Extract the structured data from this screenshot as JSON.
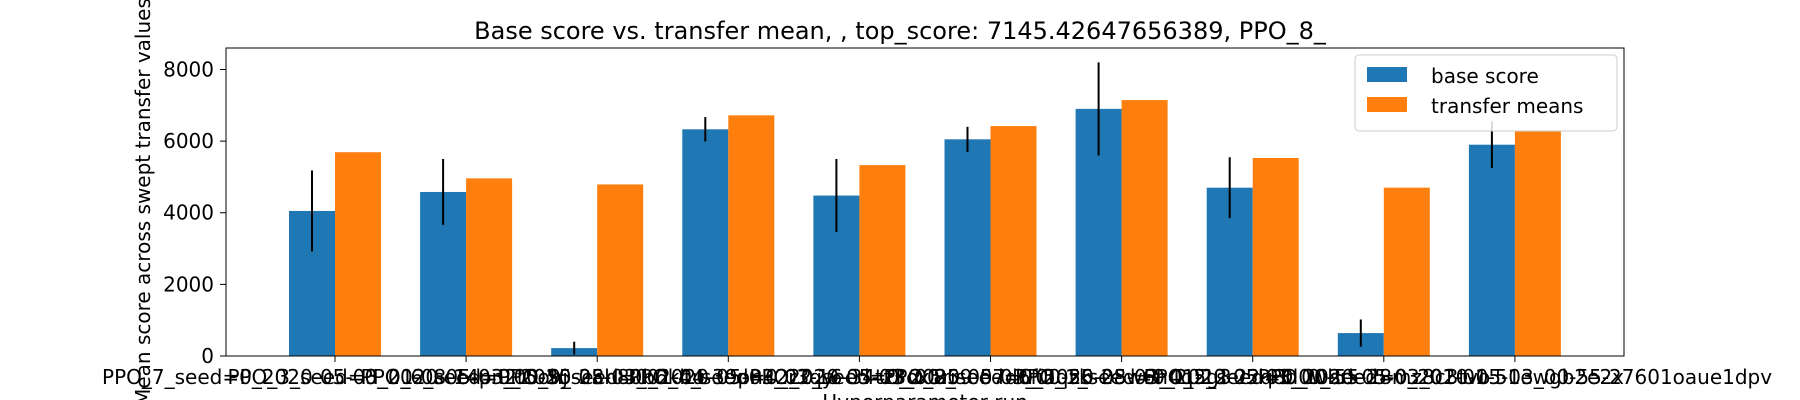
{
  "chart_data": {
    "type": "bar",
    "title": "Base score vs. transfer mean, , top_score: 7145.42647656389, PPO_8_",
    "xlabel": "Hyperparameter run",
    "ylabel": "Mean score across swept transfer values",
    "ylim": [
      0,
      8600
    ],
    "yticks": [
      0,
      2000,
      4000,
      6000,
      8000
    ],
    "grid": false,
    "legend_position": "top-right",
    "categories": [
      "PPO_7_seed=0_2020-05-03_01-08-14pn2t5ohj",
      "PPO_3_seed=0_2020-05-03_00-55-28h80b6kbu",
      "PPO_6_seed=0_2020-05-03_01-04-39pn42r3qy",
      "PPO_9_seed=0_2020-05-03_01-16-34tz3ox5rr",
      "PPO_4_seed=0_2020-05-03_00-59-07d6fi5qzk",
      "PPO_2_seed=0_2020-05-03_00-55-28w6n4q2g3",
      "PPO_8_seed=0_2020-05-03_01-12-22q8d0wbrk",
      "PPO_1_seed=0_2020-05-03_00-55-28mz8c3tvo",
      "PPO_5_seed=0_2020-05-03_01-01-51ewgb2e2x",
      "PPO_0_seed=0_2020-05-03_00-55-27601oaue1dpv"
    ],
    "series": [
      {
        "name": "base score",
        "color": "#1f77b4",
        "values": [
          4050,
          4580,
          220,
          6330,
          4480,
          6050,
          6900,
          4700,
          640,
          5900
        ],
        "errors": [
          1130,
          920,
          180,
          340,
          1020,
          350,
          1300,
          850,
          380,
          650
        ]
      },
      {
        "name": "transfer means",
        "color": "#ff7f0e",
        "values": [
          5690,
          4960,
          4790,
          6720,
          5330,
          6420,
          7145.42647656389,
          5530,
          4700,
          6280
        ]
      }
    ]
  }
}
